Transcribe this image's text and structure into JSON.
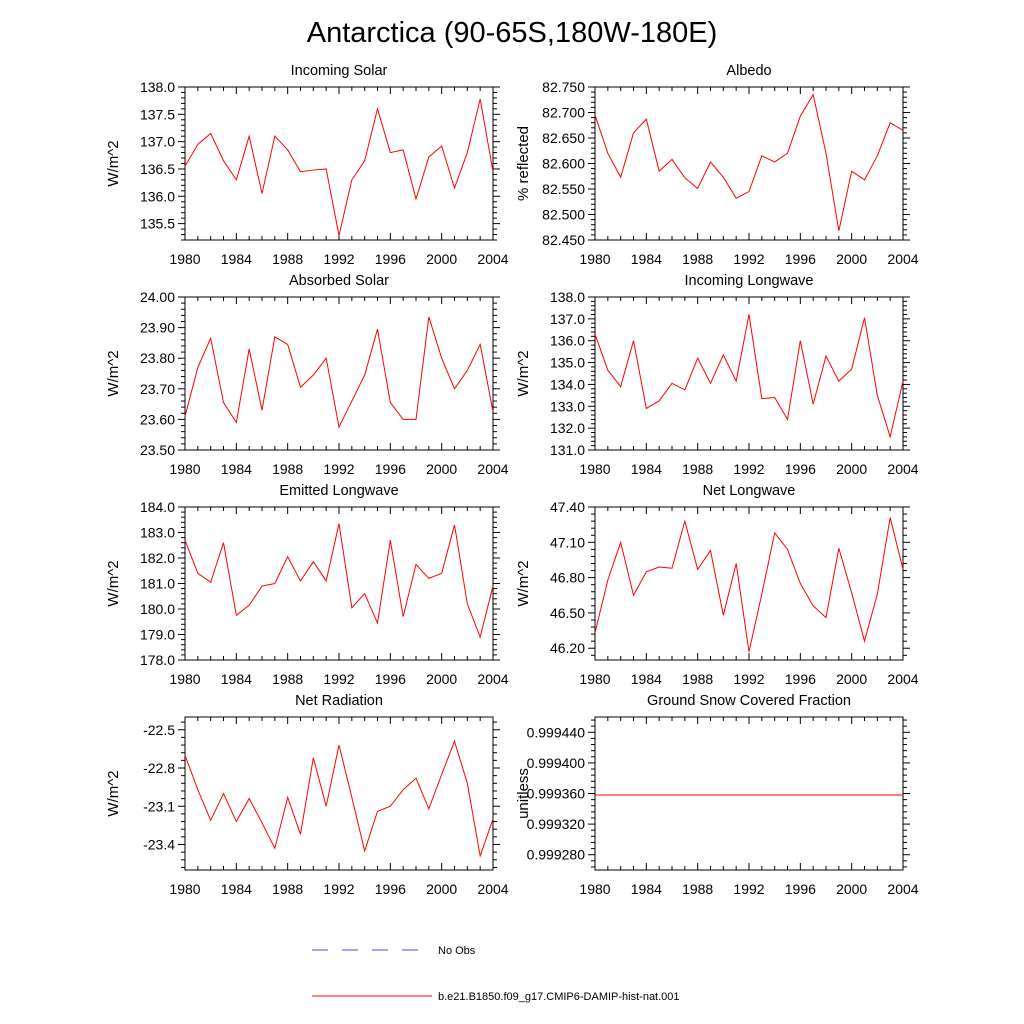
{
  "title": "Antarctica (90-65S,180W-180E)",
  "legend": {
    "obs_label": "No Obs",
    "obs_color": "#4a4ad8",
    "model_label": "b.e21.B1850.f09_g17.CMIP6-DAMIP-hist-nat.001",
    "model_color": "#ff0000"
  },
  "chart_data": [
    {
      "type": "line",
      "title": "Incoming Solar",
      "ylabel": "W/m^2",
      "xlim": [
        1980,
        2004
      ],
      "ylim": [
        135.2,
        138.0
      ],
      "xticks": [
        1980,
        1984,
        1988,
        1992,
        1996,
        2000,
        2004
      ],
      "yticks": [
        135.5,
        136.0,
        136.5,
        137.0,
        137.5,
        138.0
      ],
      "tick_decimals": 1,
      "x": [
        1980,
        1981,
        1982,
        1983,
        1984,
        1985,
        1986,
        1987,
        1988,
        1989,
        1990,
        1991,
        1992,
        1993,
        1994,
        1995,
        1996,
        1997,
        1998,
        1999,
        2000,
        2001,
        2002,
        2003,
        2004
      ],
      "series": [
        {
          "color": "#ff0000",
          "values": [
            136.55,
            136.95,
            137.15,
            136.65,
            136.3,
            137.1,
            136.05,
            137.1,
            136.85,
            136.45,
            136.48,
            136.5,
            135.28,
            136.3,
            136.65,
            137.6,
            136.8,
            136.85,
            135.95,
            136.72,
            136.92,
            136.15,
            136.8,
            137.78,
            136.45
          ]
        }
      ]
    },
    {
      "type": "line",
      "title": "Albedo",
      "ylabel": "% reflected",
      "xlim": [
        1980,
        2004
      ],
      "ylim": [
        82.45,
        82.75
      ],
      "xticks": [
        1980,
        1984,
        1988,
        1992,
        1996,
        2000,
        2004
      ],
      "yticks": [
        82.45,
        82.5,
        82.55,
        82.6,
        82.65,
        82.7,
        82.75
      ],
      "tick_decimals": 3,
      "x": [
        1980,
        1981,
        1982,
        1983,
        1984,
        1985,
        1986,
        1987,
        1988,
        1989,
        1990,
        1991,
        1992,
        1993,
        1994,
        1995,
        1996,
        1997,
        1998,
        1999,
        2000,
        2001,
        2002,
        2003,
        2004
      ],
      "series": [
        {
          "color": "#ff0000",
          "values": [
            82.695,
            82.62,
            82.573,
            82.66,
            82.687,
            82.585,
            82.608,
            82.572,
            82.551,
            82.603,
            82.573,
            82.532,
            82.545,
            82.615,
            82.603,
            82.62,
            82.693,
            82.735,
            82.62,
            82.468,
            82.585,
            82.568,
            82.615,
            82.68,
            82.665
          ]
        }
      ]
    },
    {
      "type": "line",
      "title": "Absorbed Solar",
      "ylabel": "W/m^2",
      "xlim": [
        1980,
        2004
      ],
      "ylim": [
        23.5,
        24.0
      ],
      "xticks": [
        1980,
        1984,
        1988,
        1992,
        1996,
        2000,
        2004
      ],
      "yticks": [
        23.5,
        23.6,
        23.7,
        23.8,
        23.9,
        24.0
      ],
      "tick_decimals": 2,
      "x": [
        1980,
        1981,
        1982,
        1983,
        1984,
        1985,
        1986,
        1987,
        1988,
        1989,
        1990,
        1991,
        1992,
        1993,
        1994,
        1995,
        1996,
        1997,
        1998,
        1999,
        2000,
        2001,
        2002,
        2003,
        2004
      ],
      "series": [
        {
          "color": "#ff0000",
          "values": [
            23.61,
            23.77,
            23.865,
            23.655,
            23.59,
            23.83,
            23.63,
            23.87,
            23.845,
            23.705,
            23.745,
            23.8,
            23.575,
            23.66,
            23.745,
            23.895,
            23.655,
            23.6,
            23.6,
            23.935,
            23.8,
            23.7,
            23.76,
            23.845,
            23.625
          ]
        }
      ]
    },
    {
      "type": "line",
      "title": "Incoming Longwave",
      "ylabel": "W/m^2",
      "xlim": [
        1980,
        2004
      ],
      "ylim": [
        131.0,
        138.0
      ],
      "xticks": [
        1980,
        1984,
        1988,
        1992,
        1996,
        2000,
        2004
      ],
      "yticks": [
        131.0,
        132.0,
        133.0,
        134.0,
        135.0,
        136.0,
        137.0,
        138.0
      ],
      "tick_decimals": 1,
      "x": [
        1980,
        1981,
        1982,
        1983,
        1984,
        1985,
        1986,
        1987,
        1988,
        1989,
        1990,
        1991,
        1992,
        1993,
        1994,
        1995,
        1996,
        1997,
        1998,
        1999,
        2000,
        2001,
        2002,
        2003,
        2004
      ],
      "series": [
        {
          "color": "#ff0000",
          "values": [
            136.3,
            134.65,
            133.9,
            136.0,
            132.9,
            133.25,
            134.05,
            133.75,
            135.2,
            134.05,
            135.35,
            134.15,
            137.2,
            133.35,
            133.4,
            132.4,
            136.0,
            133.1,
            135.3,
            134.15,
            134.7,
            137.05,
            133.5,
            131.6,
            134.15
          ]
        }
      ]
    },
    {
      "type": "line",
      "title": "Emitted Longwave",
      "ylabel": "W/m^2",
      "xlim": [
        1980,
        2004
      ],
      "ylim": [
        178.0,
        184.0
      ],
      "xticks": [
        1980,
        1984,
        1988,
        1992,
        1996,
        2000,
        2004
      ],
      "yticks": [
        178.0,
        179.0,
        180.0,
        181.0,
        182.0,
        183.0,
        184.0
      ],
      "tick_decimals": 1,
      "x": [
        1980,
        1981,
        1982,
        1983,
        1984,
        1985,
        1986,
        1987,
        1988,
        1989,
        1990,
        1991,
        1992,
        1993,
        1994,
        1995,
        1996,
        1997,
        1998,
        1999,
        2000,
        2001,
        2002,
        2003,
        2004
      ],
      "series": [
        {
          "color": "#ff0000",
          "values": [
            182.7,
            181.4,
            181.05,
            182.6,
            179.75,
            180.15,
            180.9,
            181.0,
            182.05,
            181.1,
            181.85,
            181.1,
            183.35,
            180.05,
            180.6,
            179.45,
            182.7,
            179.7,
            181.75,
            181.2,
            181.4,
            183.3,
            180.2,
            178.9,
            180.9
          ]
        }
      ]
    },
    {
      "type": "line",
      "title": "Net Longwave",
      "ylabel": "W/m^2",
      "xlim": [
        1980,
        2004
      ],
      "ylim": [
        46.1,
        47.4
      ],
      "xticks": [
        1980,
        1984,
        1988,
        1992,
        1996,
        2000,
        2004
      ],
      "yticks": [
        46.2,
        46.5,
        46.8,
        47.1,
        47.4
      ],
      "tick_decimals": 2,
      "x": [
        1980,
        1981,
        1982,
        1983,
        1984,
        1985,
        1986,
        1987,
        1988,
        1989,
        1990,
        1991,
        1992,
        1993,
        1994,
        1995,
        1996,
        1997,
        1998,
        1999,
        2000,
        2001,
        2002,
        2003,
        2004
      ],
      "series": [
        {
          "color": "#ff0000",
          "values": [
            46.33,
            46.78,
            47.1,
            46.65,
            46.85,
            46.89,
            46.88,
            47.28,
            46.87,
            47.03,
            46.48,
            46.92,
            46.17,
            46.66,
            47.18,
            47.04,
            46.75,
            46.56,
            46.46,
            47.05,
            46.67,
            46.26,
            46.66,
            47.31,
            46.87
          ]
        }
      ]
    },
    {
      "type": "line",
      "title": "Net Radiation",
      "ylabel": "W/m^2",
      "xlim": [
        1980,
        2004
      ],
      "ylim": [
        -23.6,
        -22.4
      ],
      "xticks": [
        1980,
        1984,
        1988,
        1992,
        1996,
        2000,
        2004
      ],
      "yticks": [
        -23.4,
        -23.1,
        -22.8,
        -22.5
      ],
      "tick_decimals": 1,
      "x": [
        1980,
        1981,
        1982,
        1983,
        1984,
        1985,
        1986,
        1987,
        1988,
        1989,
        1990,
        1991,
        1992,
        1993,
        1994,
        1995,
        1996,
        1997,
        1998,
        1999,
        2000,
        2001,
        2002,
        2003,
        2004
      ],
      "series": [
        {
          "color": "#ff0000",
          "values": [
            -22.7,
            -22.97,
            -23.21,
            -23.0,
            -23.22,
            -23.04,
            -23.23,
            -23.43,
            -23.03,
            -23.32,
            -22.72,
            -23.1,
            -22.62,
            -23.03,
            -23.45,
            -23.14,
            -23.1,
            -22.97,
            -22.88,
            -23.12,
            -22.85,
            -22.59,
            -22.92,
            -23.49,
            -23.2
          ]
        }
      ]
    },
    {
      "type": "line",
      "title": "Ground Snow Covered Fraction",
      "ylabel": "unitless",
      "xlim": [
        1980,
        2004
      ],
      "ylim": [
        0.99926,
        0.99946
      ],
      "xticks": [
        1980,
        1984,
        1988,
        1992,
        1996,
        2000,
        2004
      ],
      "yticks": [
        0.99928,
        0.99932,
        0.99936,
        0.9994,
        0.99944
      ],
      "tick_decimals": 6,
      "x": [
        1980,
        1981,
        1982,
        1983,
        1984,
        1985,
        1986,
        1987,
        1988,
        1989,
        1990,
        1991,
        1992,
        1993,
        1994,
        1995,
        1996,
        1997,
        1998,
        1999,
        2000,
        2001,
        2002,
        2003,
        2004
      ],
      "series": [
        {
          "color": "#ff0000",
          "values": [
            0.999358,
            0.999358,
            0.999358,
            0.999358,
            0.999358,
            0.999358,
            0.999358,
            0.999358,
            0.999358,
            0.999358,
            0.999358,
            0.999358,
            0.999358,
            0.999358,
            0.999358,
            0.999358,
            0.999358,
            0.999358,
            0.999358,
            0.999358,
            0.999358,
            0.999358,
            0.999358,
            0.999358,
            0.999358
          ]
        }
      ]
    }
  ]
}
